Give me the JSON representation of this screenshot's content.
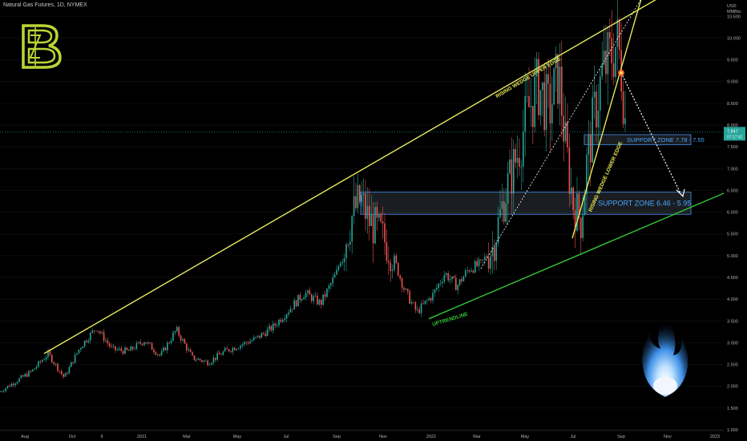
{
  "header": {
    "title": "Natural Gas Futures, 1D, NYMEX"
  },
  "logo": {
    "letter": "B"
  },
  "axis": {
    "currency": "USD",
    "unit": "MMBtu",
    "price_labels": [
      "10.500",
      "10.000",
      "9.500",
      "9.000",
      "8.500",
      "8.000",
      "7.500",
      "7.000",
      "6.500",
      "6.000",
      "5.500",
      "5.000",
      "4.500",
      "4.000",
      "3.500",
      "3.000",
      "2.500",
      "2.000",
      "1.500",
      "1.000"
    ],
    "last_price": "7.847",
    "countdown": "07:17:42",
    "date_labels": [
      "Aug",
      "Oct",
      "9",
      "2021",
      "Mar",
      "May",
      "Jul",
      "Sep",
      "Nov",
      "2022",
      "Mar",
      "May",
      "Jul",
      "Sep",
      "Nov",
      "2023"
    ]
  },
  "annotations": {
    "upper_edge": "RISING WEDGE UPPER EDGE",
    "lower_edge": "RISING WEDGE LOWER EDGE",
    "uptrend": "UPTRENDLINE",
    "support_upper": "SUPPORT ZONE 7.78 - 7.55",
    "support_lower": "SUPPORT ZONE 6.46 - 5.95"
  },
  "colors": {
    "up": "#26a69a",
    "down": "#ef5350",
    "wedge": "#e8e85a",
    "uptrend": "#35c435",
    "zone": "#3b78c3",
    "logo": "#b9d634"
  },
  "chart_data": {
    "type": "candlestick",
    "x_range": [
      "2020-07",
      "2023-01"
    ],
    "ylim": [
      1.0,
      10.8
    ],
    "series": [
      {
        "values": [
          [
            0,
            1.88
          ],
          [
            40,
            2.35
          ],
          [
            60,
            2.75
          ],
          [
            80,
            2.2
          ],
          [
            100,
            2.9
          ],
          [
            120,
            3.35
          ],
          [
            140,
            2.85
          ],
          [
            160,
            2.8
          ],
          [
            180,
            3.05
          ],
          [
            200,
            2.7
          ],
          [
            220,
            3.3
          ],
          [
            240,
            2.65
          ],
          [
            260,
            2.55
          ],
          [
            280,
            2.8
          ],
          [
            300,
            2.95
          ],
          [
            320,
            3.1
          ],
          [
            340,
            3.35
          ],
          [
            360,
            3.75
          ],
          [
            380,
            4.15
          ],
          [
            400,
            3.9
          ],
          [
            420,
            4.6
          ],
          [
            440,
            5.95
          ],
          [
            450,
            6.3
          ],
          [
            460,
            5.8
          ],
          [
            475,
            5.5
          ],
          [
            490,
            5.0
          ],
          [
            505,
            4.2
          ],
          [
            520,
            3.7
          ],
          [
            540,
            4.1
          ],
          [
            555,
            4.6
          ],
          [
            570,
            4.3
          ],
          [
            585,
            4.7
          ],
          [
            600,
            4.8
          ],
          [
            615,
            5.2
          ],
          [
            630,
            6.4
          ],
          [
            645,
            7.3
          ],
          [
            660,
            8.4
          ],
          [
            672,
            8.9
          ],
          [
            685,
            8.3
          ],
          [
            697,
            9.2
          ],
          [
            705,
            7.6
          ],
          [
            715,
            6.2
          ],
          [
            725,
            5.8
          ],
          [
            732,
            7.1
          ],
          [
            742,
            8.3
          ],
          [
            752,
            9.2
          ],
          [
            762,
            9.6
          ],
          [
            770,
            9.9
          ],
          [
            776,
            9.2
          ],
          [
            781,
            7.85
          ]
        ]
      }
    ],
    "trendlines": [
      {
        "name": "RISING WEDGE UPPER EDGE",
        "from": [
          55,
          2.75
        ],
        "to": [
          820,
          10.9
        ]
      },
      {
        "name": "RISING WEDGE LOWER EDGE",
        "from": [
          714,
          5.4
        ],
        "to": [
          800,
          10.9
        ]
      },
      {
        "name": "UPTRENDLINE",
        "from": [
          535,
          3.55
        ],
        "to": [
          905,
          6.45
        ]
      }
    ],
    "projection": {
      "from": [
        775,
        9.2
      ],
      "to": [
        850,
        6.4
      ]
    },
    "support_zones": [
      {
        "label": "SUPPORT ZONE 7.78 - 7.55",
        "low": 7.55,
        "high": 7.78
      },
      {
        "label": "SUPPORT ZONE 6.46 - 5.95",
        "low": 5.95,
        "high": 6.46
      }
    ]
  }
}
